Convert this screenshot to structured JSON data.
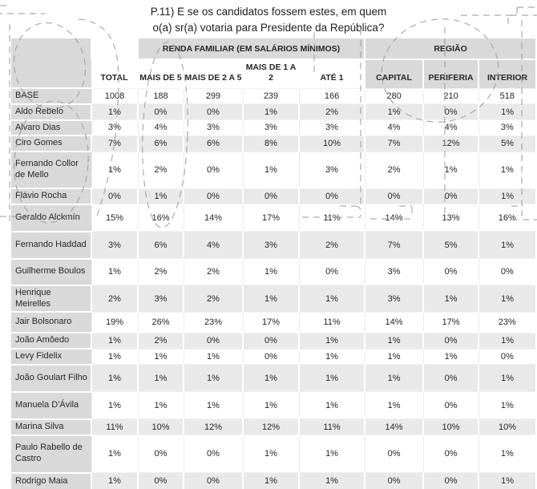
{
  "title": {
    "line1": "P.11) E se os candidatos fossem estes, em quem",
    "line2": "o(a) sr(a) votaria para Presidente da República?"
  },
  "colors": {
    "header_bg": "#d9d9d9",
    "alt_row_bg": "#e9e9e9",
    "row_bg": "#ffffff",
    "text": "#262626",
    "annotation_pen": "#9e9e9e"
  },
  "table": {
    "groups": [
      {
        "label": "RENDA FAMILIAR (EM SALÁRIOS MÍNIMOS)"
      },
      {
        "label": "REGIÃO"
      }
    ],
    "columns": [
      "TOTAL",
      "MAIS DE 5",
      "MAIS DE 2 A 5",
      "MAIS DE 1 A 2",
      "ATÉ 1",
      "CAPITAL",
      "PERIFERIA",
      "INTERIOR"
    ],
    "rows": [
      {
        "name": "BASE",
        "values": [
          "1008",
          "188",
          "299",
          "239",
          "166",
          "280",
          "210",
          "518"
        ]
      },
      {
        "name": "Aldo Rebelo",
        "values": [
          "1%",
          "0%",
          "0%",
          "1%",
          "2%",
          "1%",
          "0%",
          "1%"
        ]
      },
      {
        "name": "Alvaro Dias",
        "values": [
          "3%",
          "4%",
          "3%",
          "3%",
          "3%",
          "4%",
          "4%",
          "3%"
        ]
      },
      {
        "name": "Ciro Gomes",
        "values": [
          "7%",
          "6%",
          "6%",
          "8%",
          "10%",
          "7%",
          "12%",
          "5%"
        ]
      },
      {
        "name": "Fernando Collor de Mello",
        "values": [
          "1%",
          "2%",
          "0%",
          "1%",
          "3%",
          "2%",
          "1%",
          "1%"
        ]
      },
      {
        "name": "Flávio Rocha",
        "values": [
          "0%",
          "1%",
          "0%",
          "0%",
          "0%",
          "0%",
          "0%",
          "1%"
        ]
      },
      {
        "name": "Geraldo Alckmín",
        "values": [
          "15%",
          "16%",
          "14%",
          "17%",
          "11%",
          "14%",
          "13%",
          "16%"
        ]
      },
      {
        "name": "Fernando Haddad",
        "values": [
          "3%",
          "6%",
          "4%",
          "3%",
          "2%",
          "7%",
          "5%",
          "1%"
        ]
      },
      {
        "name": "Guilherme Boulos",
        "values": [
          "1%",
          "2%",
          "2%",
          "1%",
          "0%",
          "3%",
          "0%",
          "0%"
        ]
      },
      {
        "name": "Henrique Meirelles",
        "values": [
          "2%",
          "3%",
          "2%",
          "1%",
          "1%",
          "3%",
          "1%",
          "1%"
        ]
      },
      {
        "name": "Jair Bolsonaro",
        "values": [
          "19%",
          "26%",
          "23%",
          "17%",
          "11%",
          "14%",
          "17%",
          "23%"
        ]
      },
      {
        "name": "João Amôedo",
        "values": [
          "1%",
          "2%",
          "0%",
          "0%",
          "1%",
          "1%",
          "0%",
          "1%"
        ]
      },
      {
        "name": "Levy Fidelix",
        "values": [
          "1%",
          "1%",
          "1%",
          "0%",
          "1%",
          "1%",
          "1%",
          "0%"
        ]
      },
      {
        "name": "João Goulart Filho",
        "values": [
          "1%",
          "1%",
          "1%",
          "1%",
          "1%",
          "1%",
          "0%",
          "1%"
        ]
      },
      {
        "name": "Manuela D'Ávila",
        "values": [
          "1%",
          "1%",
          "1%",
          "1%",
          "1%",
          "1%",
          "0%",
          "1%"
        ]
      },
      {
        "name": "Marina Silva",
        "values": [
          "11%",
          "10%",
          "12%",
          "12%",
          "11%",
          "14%",
          "10%",
          "10%"
        ]
      },
      {
        "name": "Paulo Rabello de Castro",
        "values": [
          "1%",
          "0%",
          "0%",
          "1%",
          "1%",
          "0%",
          "0%",
          "1%"
        ]
      },
      {
        "name": "Rodrigo Maia",
        "values": [
          "1%",
          "0%",
          "0%",
          "1%",
          "1%",
          "0%",
          "0%",
          "1%"
        ]
      }
    ]
  }
}
